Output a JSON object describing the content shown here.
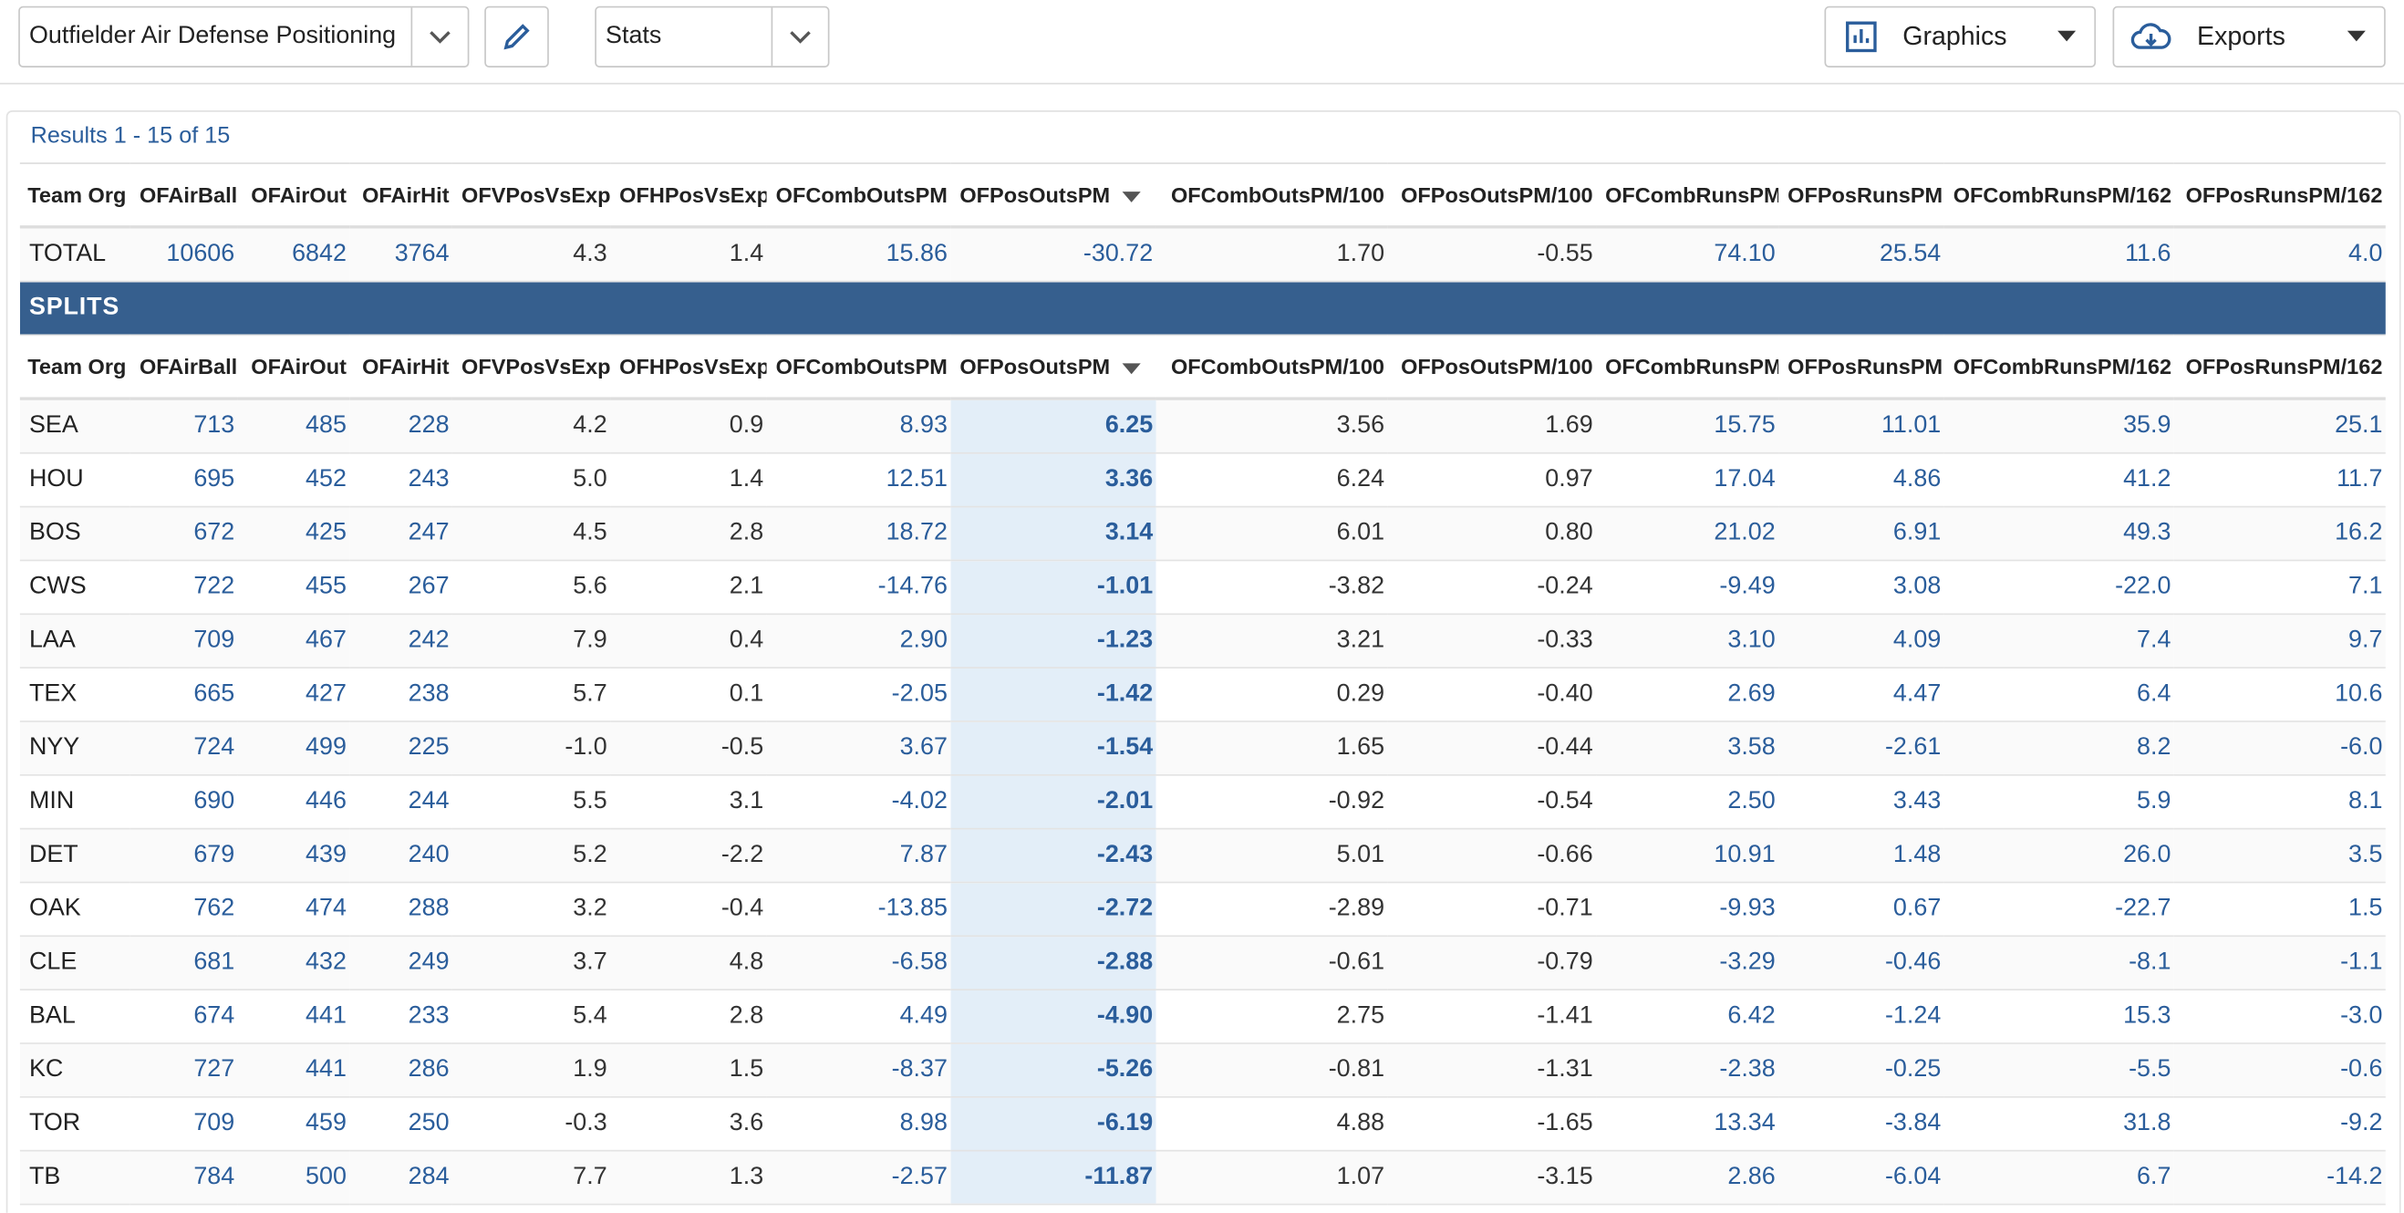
{
  "toolbar": {
    "report": "Outfielder Air Defense Positioning",
    "view": "Stats",
    "graphics": "Graphics",
    "exports": "Exports"
  },
  "results_label": "Results 1 - 15 of 15",
  "columns": [
    "Team Org",
    "OFAirBall",
    "OFAirOut",
    "OFAirHit",
    "OFVPosVsExp",
    "OFHPosVsExp",
    "OFCombOutsPM",
    "OFPosOutsPM",
    "OFCombOutsPM/100",
    "OFPosOutsPM/100",
    "OFCombRunsPM",
    "OFPosRunsPM",
    "OFCombRunsPM/162",
    "OFPosRunsPM/162"
  ],
  "total": [
    "TOTAL",
    "10606",
    "6842",
    "3764",
    "4.3",
    "1.4",
    "15.86",
    "-30.72",
    "1.70",
    "-0.55",
    "74.10",
    "25.54",
    "11.6",
    "4.0"
  ],
  "splits_label": "SPLITS",
  "rows": [
    [
      "SEA",
      "713",
      "485",
      "228",
      "4.2",
      "0.9",
      "8.93",
      "6.25",
      "3.56",
      "1.69",
      "15.75",
      "11.01",
      "35.9",
      "25.1"
    ],
    [
      "HOU",
      "695",
      "452",
      "243",
      "5.0",
      "1.4",
      "12.51",
      "3.36",
      "6.24",
      "0.97",
      "17.04",
      "4.86",
      "41.2",
      "11.7"
    ],
    [
      "BOS",
      "672",
      "425",
      "247",
      "4.5",
      "2.8",
      "18.72",
      "3.14",
      "6.01",
      "0.80",
      "21.02",
      "6.91",
      "49.3",
      "16.2"
    ],
    [
      "CWS",
      "722",
      "455",
      "267",
      "5.6",
      "2.1",
      "-14.76",
      "-1.01",
      "-3.82",
      "-0.24",
      "-9.49",
      "3.08",
      "-22.0",
      "7.1"
    ],
    [
      "LAA",
      "709",
      "467",
      "242",
      "7.9",
      "0.4",
      "2.90",
      "-1.23",
      "3.21",
      "-0.33",
      "3.10",
      "4.09",
      "7.4",
      "9.7"
    ],
    [
      "TEX",
      "665",
      "427",
      "238",
      "5.7",
      "0.1",
      "-2.05",
      "-1.42",
      "0.29",
      "-0.40",
      "2.69",
      "4.47",
      "6.4",
      "10.6"
    ],
    [
      "NYY",
      "724",
      "499",
      "225",
      "-1.0",
      "-0.5",
      "3.67",
      "-1.54",
      "1.65",
      "-0.44",
      "3.58",
      "-2.61",
      "8.2",
      "-6.0"
    ],
    [
      "MIN",
      "690",
      "446",
      "244",
      "5.5",
      "3.1",
      "-4.02",
      "-2.01",
      "-0.92",
      "-0.54",
      "2.50",
      "3.43",
      "5.9",
      "8.1"
    ],
    [
      "DET",
      "679",
      "439",
      "240",
      "5.2",
      "-2.2",
      "7.87",
      "-2.43",
      "5.01",
      "-0.66",
      "10.91",
      "1.48",
      "26.0",
      "3.5"
    ],
    [
      "OAK",
      "762",
      "474",
      "288",
      "3.2",
      "-0.4",
      "-13.85",
      "-2.72",
      "-2.89",
      "-0.71",
      "-9.93",
      "0.67",
      "-22.7",
      "1.5"
    ],
    [
      "CLE",
      "681",
      "432",
      "249",
      "3.7",
      "4.8",
      "-6.58",
      "-2.88",
      "-0.61",
      "-0.79",
      "-3.29",
      "-0.46",
      "-8.1",
      "-1.1"
    ],
    [
      "BAL",
      "674",
      "441",
      "233",
      "5.4",
      "2.8",
      "4.49",
      "-4.90",
      "2.75",
      "-1.41",
      "6.42",
      "-1.24",
      "15.3",
      "-3.0"
    ],
    [
      "KC",
      "727",
      "441",
      "286",
      "1.9",
      "1.5",
      "-8.37",
      "-5.26",
      "-0.81",
      "-1.31",
      "-2.38",
      "-0.25",
      "-5.5",
      "-0.6"
    ],
    [
      "TOR",
      "709",
      "459",
      "250",
      "-0.3",
      "3.6",
      "8.98",
      "-6.19",
      "4.88",
      "-1.65",
      "13.34",
      "-3.84",
      "31.8",
      "-9.2"
    ],
    [
      "TB",
      "784",
      "500",
      "284",
      "7.7",
      "1.3",
      "-2.57",
      "-11.87",
      "1.07",
      "-3.15",
      "2.86",
      "-6.04",
      "6.7",
      "-14.2"
    ]
  ]
}
